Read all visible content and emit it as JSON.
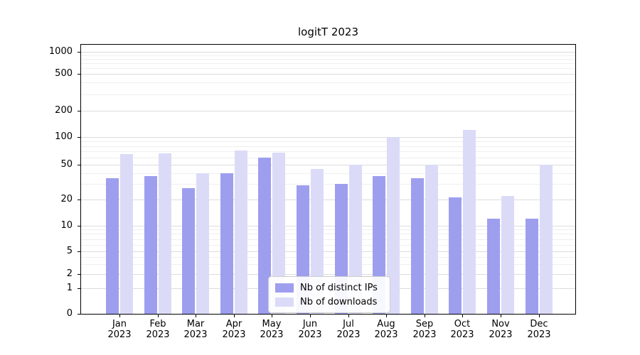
{
  "chart_data": {
    "type": "bar",
    "title": "logitT 2023",
    "categories": [
      "Jan",
      "Feb",
      "Mar",
      "Apr",
      "May",
      "Jun",
      "Jul",
      "Aug",
      "Sep",
      "Oct",
      "Nov",
      "Dec"
    ],
    "year_label": "2023",
    "series": [
      {
        "name": "Nb of distinct IPs",
        "color": "#9e9eef",
        "values": [
          35,
          37,
          27,
          40,
          60,
          29,
          30,
          37,
          35,
          21,
          12,
          12
        ]
      },
      {
        "name": "Nb of downloads",
        "color": "#dbdbf8",
        "values": [
          65,
          67,
          40,
          72,
          68,
          45,
          50,
          100,
          50,
          120,
          22,
          50
        ]
      }
    ],
    "yticks": [
      0,
      1,
      2,
      5,
      10,
      20,
      50,
      100,
      200,
      500,
      1000
    ],
    "scale": "symlog",
    "ylim": [
      0,
      1000
    ],
    "grid": "horizontal",
    "legend_position": "lower center"
  }
}
